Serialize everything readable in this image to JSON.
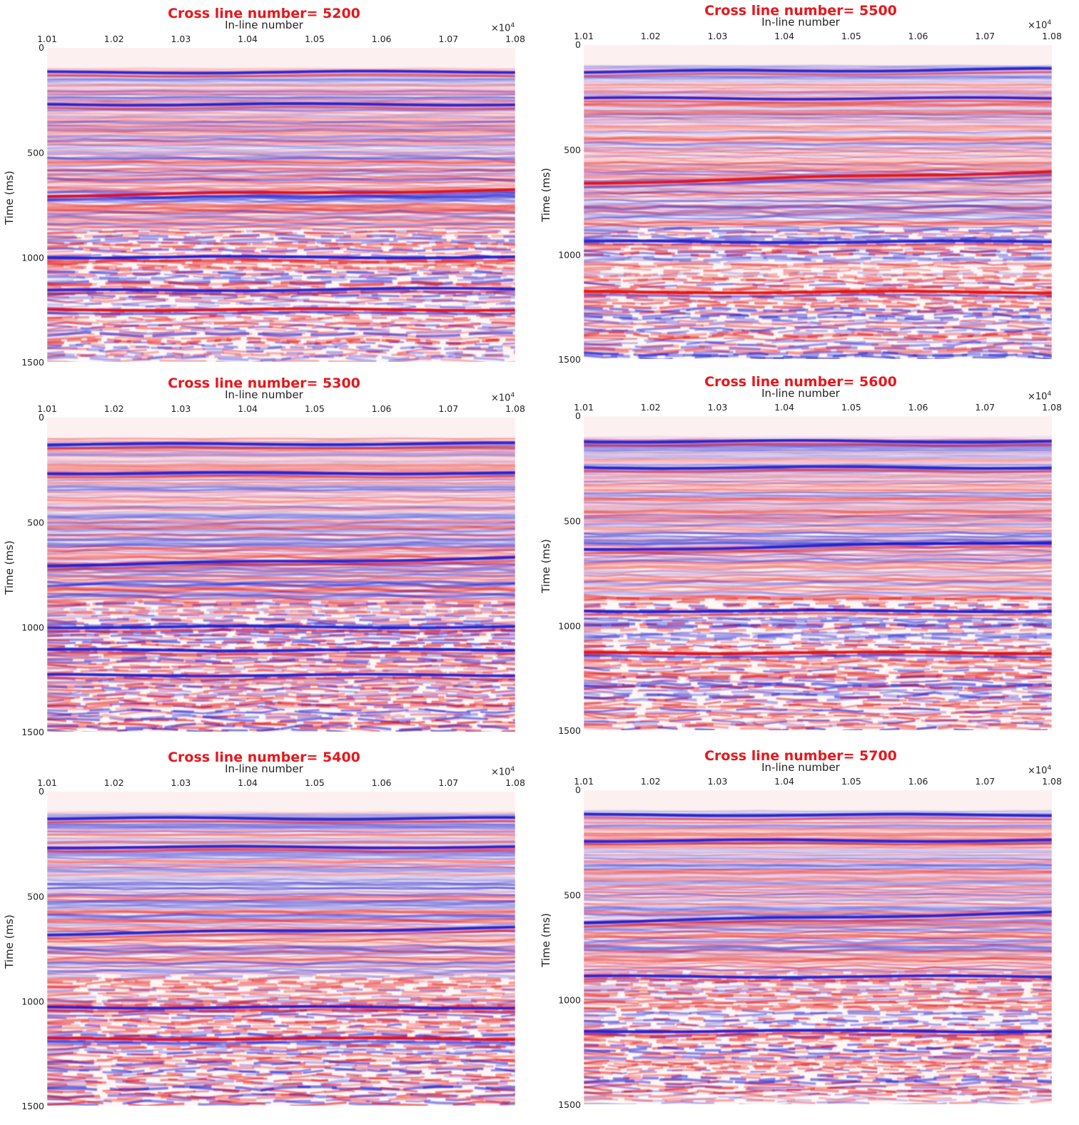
{
  "chart_data": [
    {
      "type": "heatmap",
      "title_prefix": "Cross line number= ",
      "title_value": "5200",
      "xlabel": "In-line number",
      "ylabel": "Time (ms)",
      "x_multiplier": "×10",
      "x_exponent": "4",
      "xticks": [
        "1.01",
        "1.02",
        "1.03",
        "1.04",
        "1.05",
        "1.06",
        "1.07",
        "1.08"
      ],
      "yticks": [
        "0",
        "500",
        "1000",
        "1500"
      ],
      "xlim": [
        1.01,
        1.08
      ],
      "ylim": [
        0,
        1500
      ],
      "colormap": [
        "#1a1acc",
        "#ffffff",
        "#e01010"
      ],
      "strong_horizons": [
        {
          "t": 118,
          "dip": -4,
          "polarity": -1
        },
        {
          "t": 270,
          "dip": 0,
          "polarity": -1
        },
        {
          "t": 705,
          "dip": -25,
          "polarity": 1
        },
        {
          "t": 1000,
          "dip": 0,
          "polarity": -1
        },
        {
          "t": 1160,
          "dip": -10,
          "polarity": -1
        },
        {
          "t": 1250,
          "dip": 0,
          "polarity": 1
        }
      ]
    },
    {
      "type": "heatmap",
      "title_prefix": "Cross line number= ",
      "title_value": "5500",
      "xlabel": "In-line number",
      "ylabel": "Time (ms)",
      "x_multiplier": "×10",
      "x_exponent": "4",
      "xticks": [
        "1.01",
        "1.02",
        "1.03",
        "1.04",
        "1.05",
        "1.06",
        "1.07",
        "1.08"
      ],
      "yticks": [
        "0",
        "500",
        "1000",
        "1500"
      ],
      "xlim": [
        1.01,
        1.08
      ],
      "ylim": [
        0,
        1500
      ],
      "colormap": [
        "#1a1acc",
        "#ffffff",
        "#e01010"
      ],
      "strong_horizons": [
        {
          "t": 128,
          "dip": -12,
          "polarity": -1
        },
        {
          "t": 255,
          "dip": 0,
          "polarity": -1
        },
        {
          "t": 660,
          "dip": -55,
          "polarity": 1
        },
        {
          "t": 940,
          "dip": 0,
          "polarity": -1
        },
        {
          "t": 1180,
          "dip": 0,
          "polarity": 1
        }
      ]
    },
    {
      "type": "heatmap",
      "title_prefix": "Cross line number= ",
      "title_value": "5300",
      "xlabel": "In-line number",
      "ylabel": "Time (ms)",
      "x_multiplier": "×10",
      "x_exponent": "4",
      "xticks": [
        "1.01",
        "1.02",
        "1.03",
        "1.04",
        "1.05",
        "1.06",
        "1.07",
        "1.08"
      ],
      "yticks": [
        "0",
        "500",
        "1000",
        "1500"
      ],
      "xlim": [
        1.01,
        1.08
      ],
      "ylim": [
        0,
        1500
      ],
      "colormap": [
        "#1a1acc",
        "#ffffff",
        "#e01010"
      ],
      "strong_horizons": [
        {
          "t": 128,
          "dip": -4,
          "polarity": -1
        },
        {
          "t": 265,
          "dip": 0,
          "polarity": -1
        },
        {
          "t": 705,
          "dip": -35,
          "polarity": -1
        },
        {
          "t": 1000,
          "dip": 0,
          "polarity": -1
        },
        {
          "t": 1110,
          "dip": 0,
          "polarity": -1
        },
        {
          "t": 1230,
          "dip": 0,
          "polarity": -1
        }
      ]
    },
    {
      "type": "heatmap",
      "title_prefix": "Cross line number= ",
      "title_value": "5600",
      "xlabel": "In-line number",
      "ylabel": "Time (ms)",
      "x_multiplier": "×10",
      "x_exponent": "4",
      "xticks": [
        "1.01",
        "1.02",
        "1.03",
        "1.04",
        "1.05",
        "1.06",
        "1.07",
        "1.08"
      ],
      "yticks": [
        "0",
        "500",
        "1000",
        "1500"
      ],
      "xlim": [
        1.01,
        1.08
      ],
      "ylim": [
        0,
        1500
      ],
      "colormap": [
        "#1a1acc",
        "#ffffff",
        "#e01010"
      ],
      "strong_horizons": [
        {
          "t": 120,
          "dip": 0,
          "polarity": -1
        },
        {
          "t": 245,
          "dip": 0,
          "polarity": -1
        },
        {
          "t": 640,
          "dip": -40,
          "polarity": -1
        },
        {
          "t": 930,
          "dip": 0,
          "polarity": -1
        },
        {
          "t": 1130,
          "dip": 0,
          "polarity": 1
        }
      ]
    },
    {
      "type": "heatmap",
      "title_prefix": "Cross line number= ",
      "title_value": "5400",
      "xlabel": "In-line number",
      "ylabel": "Time (ms)",
      "x_multiplier": "×10",
      "x_exponent": "4",
      "xticks": [
        "1.01",
        "1.02",
        "1.03",
        "1.04",
        "1.05",
        "1.06",
        "1.07",
        "1.08"
      ],
      "yticks": [
        "0",
        "500",
        "1000",
        "1500"
      ],
      "xlim": [
        1.01,
        1.08
      ],
      "ylim": [
        0,
        1500
      ],
      "colormap": [
        "#1a1acc",
        "#ffffff",
        "#e01010"
      ],
      "strong_horizons": [
        {
          "t": 128,
          "dip": 0,
          "polarity": -1
        },
        {
          "t": 265,
          "dip": 0,
          "polarity": -1
        },
        {
          "t": 680,
          "dip": -30,
          "polarity": -1
        },
        {
          "t": 1030,
          "dip": 0,
          "polarity": -1
        },
        {
          "t": 1180,
          "dip": 0,
          "polarity": 1
        }
      ]
    },
    {
      "type": "heatmap",
      "title_prefix": "Cross line number= ",
      "title_value": "5700",
      "xlabel": "In-line number",
      "ylabel": "Time (ms)",
      "x_multiplier": "×10",
      "x_exponent": "4",
      "xticks": [
        "1.01",
        "1.02",
        "1.03",
        "1.04",
        "1.05",
        "1.06",
        "1.07",
        "1.08"
      ],
      "yticks": [
        "0",
        "500",
        "1000",
        "1500"
      ],
      "xlim": [
        1.01,
        1.08
      ],
      "ylim": [
        0,
        1500
      ],
      "colormap": [
        "#1a1acc",
        "#ffffff",
        "#e01010"
      ],
      "strong_horizons": [
        {
          "t": 118,
          "dip": 0,
          "polarity": -1
        },
        {
          "t": 240,
          "dip": 0,
          "polarity": -1
        },
        {
          "t": 630,
          "dip": -45,
          "polarity": -1
        },
        {
          "t": 890,
          "dip": 0,
          "polarity": -1
        },
        {
          "t": 1150,
          "dip": 0,
          "polarity": -1
        }
      ]
    }
  ],
  "colors": {
    "title": "#e8161b",
    "text": "#222222",
    "negative": "#1a1acc",
    "positive": "#e01010",
    "background": "#ffffff"
  }
}
